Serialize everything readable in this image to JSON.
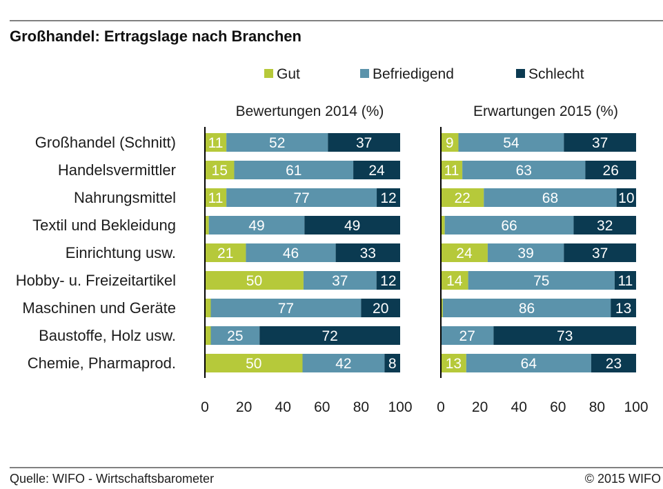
{
  "chart_data": {
    "type": "bar",
    "orientation": "horizontal",
    "stacked": true,
    "title": "Großhandel: Ertragslage nach Branchen",
    "legend_position": "top",
    "grid": false,
    "categories": [
      "Großhandel (Schnitt)",
      "Handelsvermittler",
      "Nahrungsmittel",
      "Textil und Bekleidung",
      "Einrichtung usw.",
      "Hobby- u. Freizeitartikel",
      "Maschinen und Geräte",
      "Baustoffe, Holz usw.",
      "Chemie, Pharmaprod."
    ],
    "series": [
      {
        "name": "Gut",
        "color": "#b6c93a"
      },
      {
        "name": "Befriedigend",
        "color": "#5b93ab"
      },
      {
        "name": "Schlecht",
        "color": "#0b3a51"
      }
    ],
    "panels": [
      {
        "title": "Bewertungen 2014 (%)",
        "xlim": [
          0,
          100
        ],
        "x_ticks": [
          0,
          20,
          40,
          60,
          80,
          100
        ],
        "values_by_category": [
          [
            11,
            52,
            37
          ],
          [
            15,
            61,
            24
          ],
          [
            11,
            77,
            12
          ],
          [
            2,
            49,
            49
          ],
          [
            21,
            46,
            33
          ],
          [
            50,
            37,
            12
          ],
          [
            3,
            77,
            20
          ],
          [
            3,
            25,
            72
          ],
          [
            50,
            42,
            8
          ]
        ]
      },
      {
        "title": "Erwartungen 2015 (%)",
        "xlim": [
          0,
          100
        ],
        "x_ticks": [
          0,
          20,
          40,
          60,
          80,
          100
        ],
        "values_by_category": [
          [
            9,
            54,
            37
          ],
          [
            11,
            63,
            26
          ],
          [
            22,
            68,
            10
          ],
          [
            2,
            66,
            32
          ],
          [
            24,
            39,
            37
          ],
          [
            14,
            75,
            11
          ],
          [
            1,
            86,
            13
          ],
          [
            0,
            27,
            73
          ],
          [
            13,
            64,
            23
          ]
        ]
      }
    ]
  },
  "footer": {
    "source": "Quelle: WIFO - Wirtschaftsbarometer",
    "copyright": "© 2015 WIFO"
  }
}
